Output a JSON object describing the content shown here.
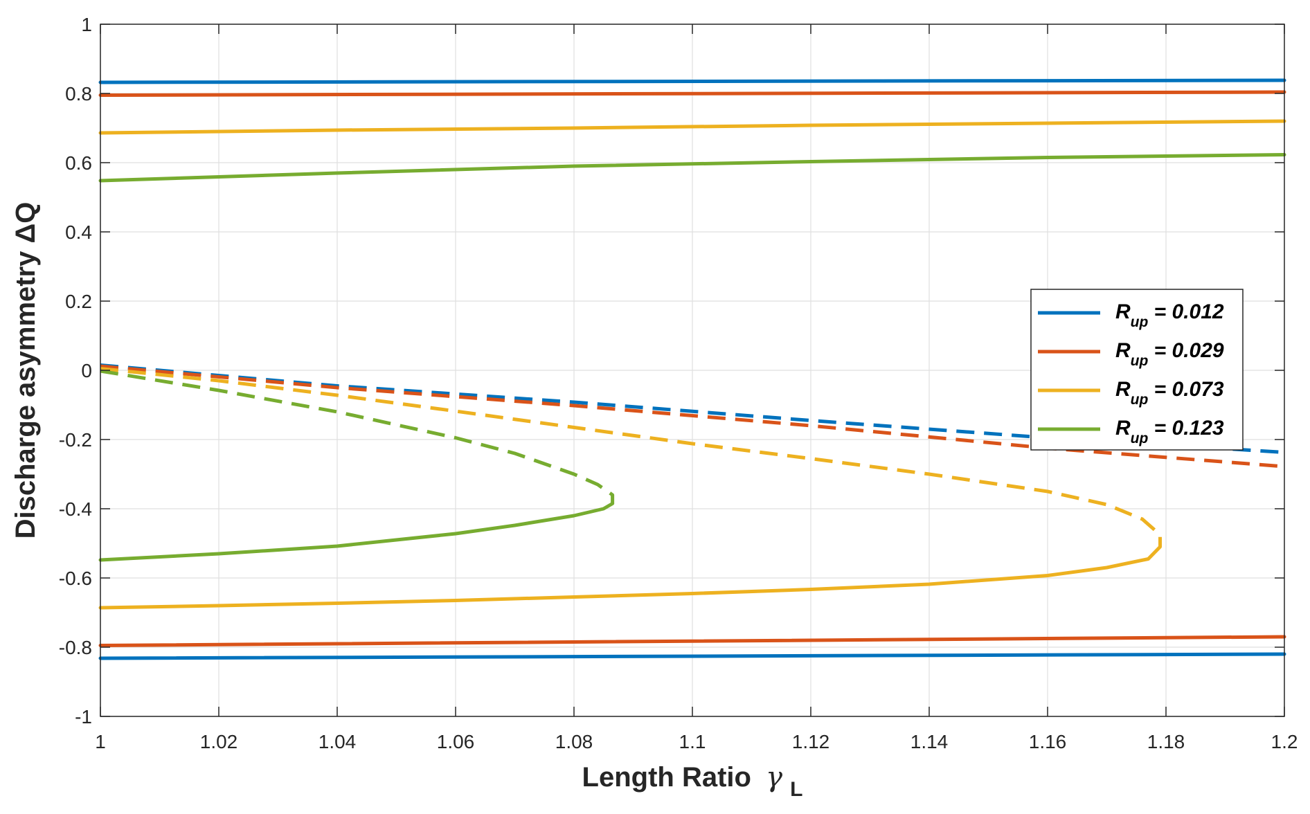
{
  "chart_data": {
    "type": "line",
    "title": "",
    "xlabel": "Length Ratio",
    "xlabel_symbol": "γ",
    "xlabel_symbol_sub": "L",
    "ylabel": "Discharge asymmetry ΔQ",
    "xlim": [
      1,
      1.2
    ],
    "ylim": [
      -1,
      1
    ],
    "xticks": [
      1,
      1.02,
      1.04,
      1.06,
      1.08,
      1.1,
      1.12,
      1.14,
      1.16,
      1.18,
      1.2
    ],
    "xtick_labels": [
      "1",
      "1.02",
      "1.04",
      "1.06",
      "1.08",
      "1.1",
      "1.12",
      "1.14",
      "1.16",
      "1.18",
      "1.2"
    ],
    "yticks": [
      -1,
      -0.8,
      -0.6,
      -0.4,
      -0.2,
      0,
      0.2,
      0.4,
      0.6,
      0.8,
      1
    ],
    "ytick_labels": [
      "-1",
      "-0.8",
      "-0.6",
      "-0.4",
      "-0.2",
      "0",
      "0.2",
      "0.4",
      "0.6",
      "0.8",
      "1"
    ],
    "grid": true,
    "legend_position": "right",
    "series": [
      {
        "name": "R",
        "name_sub": "up",
        "name_value": " = 0.012",
        "color": "#0072BD",
        "upper_solid": [
          [
            1.0,
            0.832
          ],
          [
            1.2,
            0.838
          ]
        ],
        "middle_dashed": [
          [
            1.0,
            0.015
          ],
          [
            1.04,
            -0.045
          ],
          [
            1.08,
            -0.092
          ],
          [
            1.12,
            -0.145
          ],
          [
            1.16,
            -0.195
          ],
          [
            1.2,
            -0.237
          ]
        ],
        "lower_solid": [
          [
            1.0,
            -0.832
          ],
          [
            1.2,
            -0.82
          ]
        ]
      },
      {
        "name": "R",
        "name_sub": "up",
        "name_value": " = 0.029",
        "color": "#D95319",
        "upper_solid": [
          [
            1.0,
            0.795
          ],
          [
            1.2,
            0.804
          ]
        ],
        "middle_dashed": [
          [
            1.0,
            0.012
          ],
          [
            1.04,
            -0.05
          ],
          [
            1.08,
            -0.102
          ],
          [
            1.12,
            -0.16
          ],
          [
            1.16,
            -0.225
          ],
          [
            1.2,
            -0.278
          ]
        ],
        "lower_solid": [
          [
            1.0,
            -0.795
          ],
          [
            1.2,
            -0.77
          ]
        ]
      },
      {
        "name": "R",
        "name_sub": "up",
        "name_value": " = 0.073",
        "color": "#EDB120",
        "upper_solid": [
          [
            1.0,
            0.686
          ],
          [
            1.04,
            0.694
          ],
          [
            1.08,
            0.7
          ],
          [
            1.12,
            0.708
          ],
          [
            1.16,
            0.714
          ],
          [
            1.2,
            0.72
          ]
        ],
        "middle_dashed": [
          [
            1.0,
            0.005
          ],
          [
            1.02,
            -0.03
          ],
          [
            1.04,
            -0.072
          ],
          [
            1.06,
            -0.118
          ],
          [
            1.08,
            -0.165
          ],
          [
            1.1,
            -0.212
          ],
          [
            1.12,
            -0.255
          ],
          [
            1.14,
            -0.3
          ],
          [
            1.16,
            -0.35
          ],
          [
            1.17,
            -0.388
          ],
          [
            1.176,
            -0.43
          ],
          [
            1.179,
            -0.475
          ],
          [
            1.179,
            -0.51
          ]
        ],
        "lower_solid": [
          [
            1.179,
            -0.51
          ],
          [
            1.177,
            -0.545
          ],
          [
            1.17,
            -0.57
          ],
          [
            1.16,
            -0.593
          ],
          [
            1.14,
            -0.618
          ],
          [
            1.12,
            -0.633
          ],
          [
            1.1,
            -0.645
          ],
          [
            1.08,
            -0.655
          ],
          [
            1.06,
            -0.665
          ],
          [
            1.04,
            -0.673
          ],
          [
            1.02,
            -0.68
          ],
          [
            1.0,
            -0.686
          ]
        ]
      },
      {
        "name": "R",
        "name_sub": "up",
        "name_value": " = 0.123",
        "color": "#77AC30",
        "upper_solid": [
          [
            1.0,
            0.548
          ],
          [
            1.04,
            0.57
          ],
          [
            1.08,
            0.59
          ],
          [
            1.12,
            0.603
          ],
          [
            1.16,
            0.615
          ],
          [
            1.2,
            0.623
          ]
        ],
        "middle_dashed": [
          [
            1.0,
            -0.002
          ],
          [
            1.02,
            -0.058
          ],
          [
            1.04,
            -0.12
          ],
          [
            1.06,
            -0.195
          ],
          [
            1.07,
            -0.24
          ],
          [
            1.08,
            -0.3
          ],
          [
            1.084,
            -0.33
          ],
          [
            1.0865,
            -0.36
          ],
          [
            1.0865,
            -0.385
          ]
        ],
        "lower_solid": [
          [
            1.0865,
            -0.385
          ],
          [
            1.085,
            -0.4
          ],
          [
            1.08,
            -0.42
          ],
          [
            1.07,
            -0.448
          ],
          [
            1.06,
            -0.472
          ],
          [
            1.04,
            -0.508
          ],
          [
            1.02,
            -0.53
          ],
          [
            1.0,
            -0.548
          ]
        ]
      }
    ]
  }
}
